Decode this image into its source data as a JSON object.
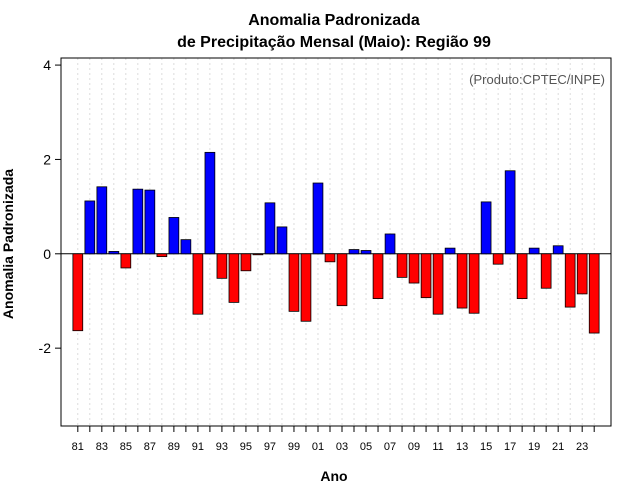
{
  "chart_data": {
    "type": "bar",
    "title": "Anomalia Padronizada",
    "subtitle": "de Precipitação Mensal (Maio): Região 99",
    "xlabel": "Ano",
    "ylabel": "Anomalia Padronizada",
    "credit": "(Produto:CPTEC/INPE)",
    "ylim": [
      -3.65,
      4.15
    ],
    "yticks": [
      -2,
      0,
      2,
      4
    ],
    "yticks_labels": [
      "-2",
      "0",
      "2",
      "4"
    ],
    "grid": true,
    "positive_color": "#0000ff",
    "negative_color": "#ff0000",
    "categories": [
      "81",
      "82",
      "83",
      "84",
      "85",
      "86",
      "87",
      "88",
      "89",
      "90",
      "91",
      "92",
      "93",
      "94",
      "95",
      "96",
      "97",
      "98",
      "99",
      "00",
      "01",
      "02",
      "03",
      "04",
      "05",
      "06",
      "07",
      "08",
      "09",
      "10",
      "11",
      "12",
      "13",
      "14",
      "15",
      "16",
      "17",
      "18",
      "19",
      "20",
      "21",
      "22",
      "23",
      "24"
    ],
    "xtick_labels": [
      "81",
      "83",
      "85",
      "87",
      "89",
      "91",
      "93",
      "95",
      "97",
      "99",
      "01",
      "03",
      "05",
      "07",
      "09",
      "11",
      "13",
      "15",
      "17",
      "19",
      "21",
      "23"
    ],
    "values": [
      -1.63,
      1.12,
      1.42,
      0.05,
      -0.3,
      1.37,
      1.35,
      -0.06,
      0.77,
      0.3,
      -1.28,
      2.15,
      -0.52,
      -1.03,
      -0.36,
      -0.02,
      1.08,
      0.57,
      -1.22,
      -1.43,
      1.5,
      -0.17,
      -1.1,
      0.09,
      0.07,
      -0.95,
      0.42,
      -0.5,
      -0.62,
      -0.93,
      -1.28,
      0.12,
      -1.15,
      -1.26,
      1.1,
      -0.22,
      1.76,
      -0.95,
      0.12,
      -0.73,
      0.17,
      -1.13,
      -0.85,
      -1.68
    ]
  }
}
